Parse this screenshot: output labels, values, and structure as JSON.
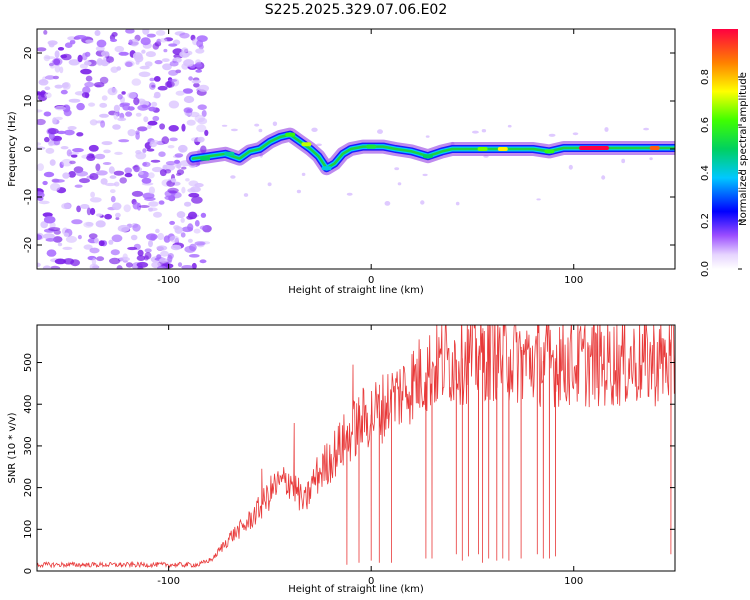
{
  "title": "S225.2025.329.07.06.E02",
  "chart_data": [
    {
      "type": "heatmap",
      "xlabel": "Height of straight line (km)",
      "ylabel": "Frequency (Hz)",
      "xlim": [
        -165,
        150
      ],
      "ylim": [
        -25,
        25
      ],
      "xticks": [
        -100,
        0,
        100
      ],
      "yticks": [
        -20,
        -10,
        0,
        10,
        20
      ],
      "colorbar": {
        "label": "Normalized spectral amplitude",
        "range": [
          0,
          1
        ],
        "ticks": [
          "0.0",
          "0.2",
          "0.4",
          "0.6",
          "0.8"
        ]
      },
      "noise_region_x": [
        -165,
        -85
      ],
      "ridge": [
        {
          "x": -88,
          "y": -2
        },
        {
          "x": -80,
          "y": -1.5
        },
        {
          "x": -72,
          "y": -1
        },
        {
          "x": -65,
          "y": -2
        },
        {
          "x": -60,
          "y": -0.5
        },
        {
          "x": -55,
          "y": 0
        },
        {
          "x": -50,
          "y": 1.5
        },
        {
          "x": -45,
          "y": 2.5
        },
        {
          "x": -40,
          "y": 3
        },
        {
          "x": -35,
          "y": 1.5
        },
        {
          "x": -30,
          "y": 0
        },
        {
          "x": -26,
          "y": -1.5
        },
        {
          "x": -22,
          "y": -4
        },
        {
          "x": -18,
          "y": -3
        },
        {
          "x": -14,
          "y": -1
        },
        {
          "x": -10,
          "y": 0
        },
        {
          "x": -4,
          "y": 0.5
        },
        {
          "x": 0,
          "y": 0.5
        },
        {
          "x": 6,
          "y": 0.5
        },
        {
          "x": 12,
          "y": 0
        },
        {
          "x": 20,
          "y": -0.5
        },
        {
          "x": 28,
          "y": -1.5
        },
        {
          "x": 35,
          "y": -0.5
        },
        {
          "x": 40,
          "y": 0
        },
        {
          "x": 50,
          "y": 0
        },
        {
          "x": 60,
          "y": 0
        },
        {
          "x": 70,
          "y": 0
        },
        {
          "x": 80,
          "y": 0
        },
        {
          "x": 88,
          "y": -0.5
        },
        {
          "x": 95,
          "y": 0.2
        },
        {
          "x": 110,
          "y": 0.2
        },
        {
          "x": 125,
          "y": 0.2
        },
        {
          "x": 140,
          "y": 0.2
        },
        {
          "x": 150,
          "y": 0.2
        }
      ],
      "hotspots": [
        {
          "x": -82,
          "y": -2,
          "amp": 0.5
        },
        {
          "x": -70,
          "y": -1,
          "amp": 0.45
        },
        {
          "x": -40,
          "y": 3,
          "amp": 0.6
        },
        {
          "x": -32,
          "y": 1,
          "amp": 0.7
        },
        {
          "x": -22,
          "y": -4,
          "amp": 0.4
        },
        {
          "x": 0,
          "y": 0.5,
          "amp": 0.55
        },
        {
          "x": 28,
          "y": -1.5,
          "amp": 0.5
        },
        {
          "x": 55,
          "y": 0,
          "amp": 0.65
        },
        {
          "x": 65,
          "y": 0,
          "amp": 0.75
        },
        {
          "x": 88,
          "y": -0.5,
          "amp": 0.6
        },
        {
          "x": 110,
          "y": 0.2,
          "amp": 1.0
        },
        {
          "x": 140,
          "y": 0.2,
          "amp": 0.9
        }
      ]
    },
    {
      "type": "line",
      "xlabel": "Height of straight line (km)",
      "ylabel": "SNR (10 * v/v)",
      "xlim": [
        -165,
        150
      ],
      "ylim": [
        0,
        590
      ],
      "xticks": [
        -100,
        0,
        100
      ],
      "yticks": [
        0,
        100,
        200,
        300,
        400,
        500
      ],
      "color": "#e83a3a",
      "envelope": [
        {
          "x": -165,
          "y": 15
        },
        {
          "x": -85,
          "y": 15
        },
        {
          "x": -78,
          "y": 30
        },
        {
          "x": -70,
          "y": 80
        },
        {
          "x": -62,
          "y": 110
        },
        {
          "x": -55,
          "y": 150
        },
        {
          "x": -48,
          "y": 200
        },
        {
          "x": -40,
          "y": 220
        },
        {
          "x": -33,
          "y": 160
        },
        {
          "x": -28,
          "y": 220
        },
        {
          "x": -20,
          "y": 270
        },
        {
          "x": -12,
          "y": 320
        },
        {
          "x": -5,
          "y": 360
        },
        {
          "x": 5,
          "y": 390
        },
        {
          "x": 15,
          "y": 430
        },
        {
          "x": 25,
          "y": 470
        },
        {
          "x": 35,
          "y": 500
        },
        {
          "x": 45,
          "y": 510
        },
        {
          "x": 60,
          "y": 520
        },
        {
          "x": 80,
          "y": 505
        },
        {
          "x": 100,
          "y": 500
        },
        {
          "x": 120,
          "y": 500
        },
        {
          "x": 150,
          "y": 505
        }
      ],
      "spikes": [
        {
          "x": -54,
          "y": 245
        },
        {
          "x": -38,
          "y": 355
        },
        {
          "x": -9,
          "y": 495
        },
        {
          "x": 59,
          "y": 580
        },
        {
          "x": 93,
          "y": 585
        },
        {
          "x": 148,
          "y": 555
        }
      ],
      "dropouts": [
        {
          "x": -12,
          "y": 15
        },
        {
          "x": -6,
          "y": 20
        },
        {
          "x": 0,
          "y": 25
        },
        {
          "x": 4,
          "y": 20
        },
        {
          "x": 10,
          "y": 20
        },
        {
          "x": 27,
          "y": 30
        },
        {
          "x": 30,
          "y": 30
        },
        {
          "x": 42,
          "y": 40
        },
        {
          "x": 45,
          "y": 25
        },
        {
          "x": 48,
          "y": 35
        },
        {
          "x": 53,
          "y": 40
        },
        {
          "x": 55,
          "y": 20
        },
        {
          "x": 58,
          "y": 30
        },
        {
          "x": 62,
          "y": 25
        },
        {
          "x": 65,
          "y": 30
        },
        {
          "x": 68,
          "y": 25
        },
        {
          "x": 74,
          "y": 30
        },
        {
          "x": 82,
          "y": 40
        },
        {
          "x": 85,
          "y": 30
        },
        {
          "x": 88,
          "y": 30
        },
        {
          "x": 91,
          "y": 35
        },
        {
          "x": 148,
          "y": 40
        }
      ]
    }
  ]
}
